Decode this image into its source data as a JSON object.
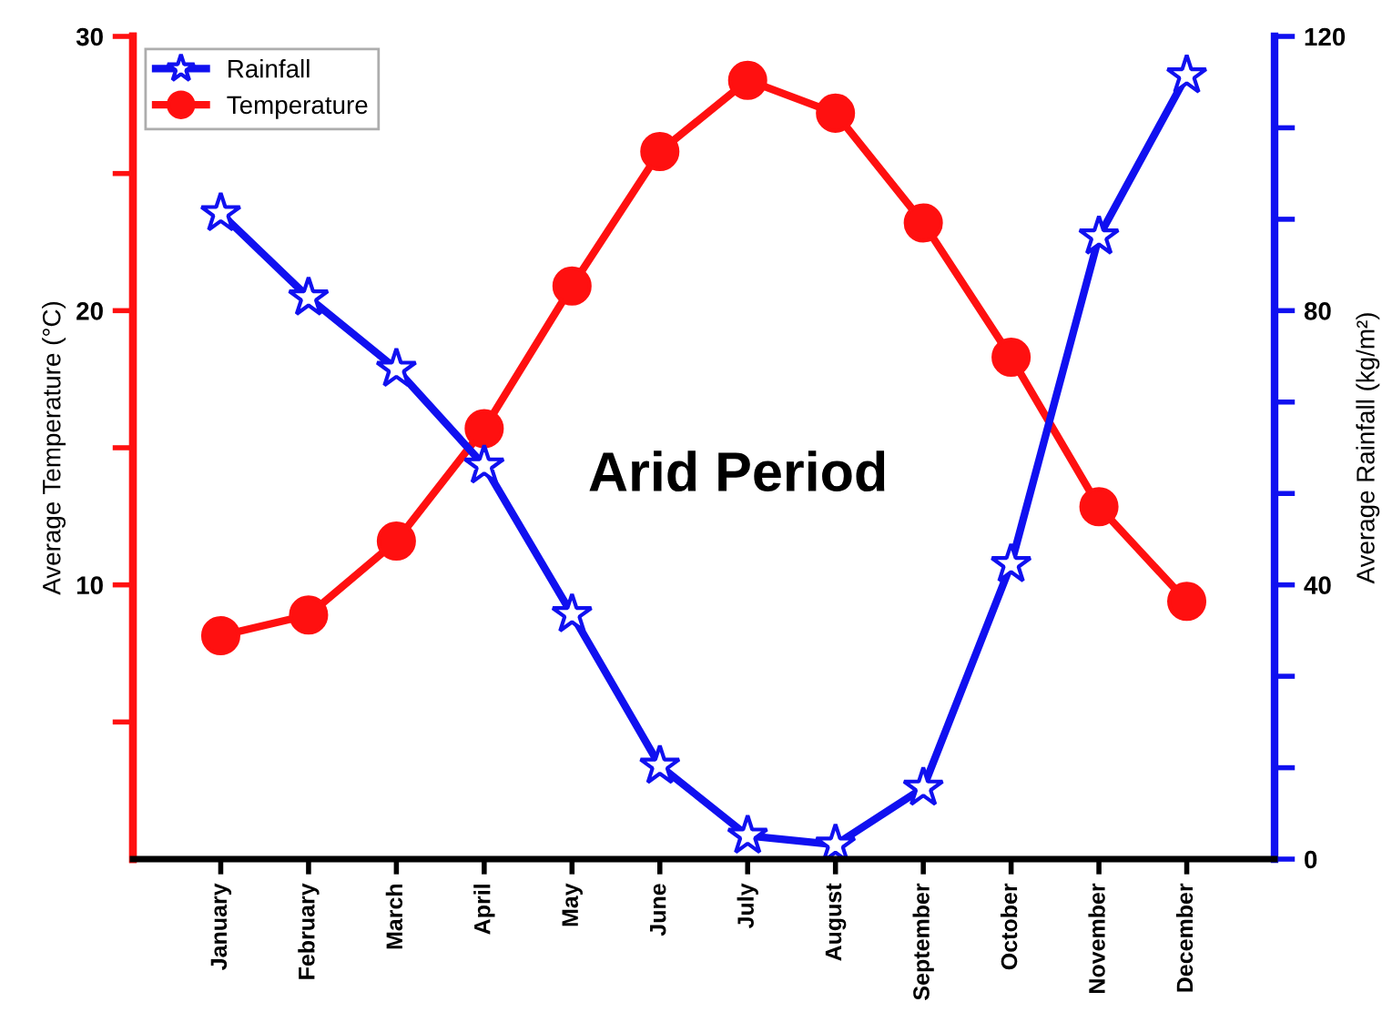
{
  "chart_data": {
    "type": "line",
    "categories": [
      "January",
      "February",
      "March",
      "April",
      "May",
      "June",
      "July",
      "August",
      "September",
      "October",
      "November",
      "December"
    ],
    "series": [
      {
        "name": "Rainfall",
        "color": "#1010f0",
        "axis": "y2",
        "marker": "star",
        "values": [
          94.2,
          81.9,
          71.5,
          57.4,
          35.7,
          13.6,
          3.4,
          2.1,
          10.4,
          43,
          90.8,
          114.3
        ]
      },
      {
        "name": "Temperature",
        "color": "#ff1010",
        "axis": "y",
        "marker": "circle",
        "values": [
          8.15,
          8.9,
          11.6,
          15.7,
          20.9,
          25.8,
          28.4,
          27.2,
          23.2,
          18.3,
          12.85,
          9.4
        ]
      }
    ],
    "ylabel": "Average Temperature (°C)",
    "y2label": "Average Rainfall (kg/m²)",
    "ylim": [
      0,
      30
    ],
    "yticks": [
      {
        "value": 5,
        "label": null
      },
      10,
      {
        "value": 15,
        "label": null
      },
      20,
      {
        "value": 25,
        "label": null
      },
      30
    ],
    "y2lim": [
      0,
      120
    ],
    "y2ticks": [
      0,
      {
        "value": 13.33,
        "label": null
      },
      {
        "value": 26.67,
        "label": null
      },
      40,
      {
        "value": 53.33,
        "label": null
      },
      {
        "value": 66.67,
        "label": null
      },
      80,
      {
        "value": 93.33,
        "label": null
      },
      {
        "value": 106.67,
        "label": null
      },
      120
    ],
    "annotations": [
      "Arid Period"
    ],
    "legend": "top left",
    "grid": false,
    "line_style": "solid"
  }
}
